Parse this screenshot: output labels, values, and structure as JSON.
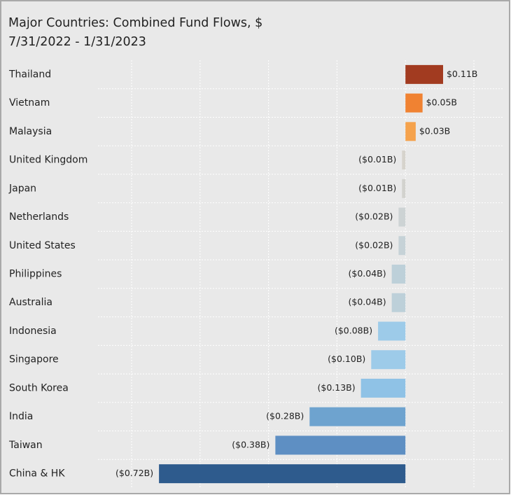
{
  "chart_data": {
    "type": "bar",
    "orientation": "horizontal",
    "title": "Major Countries:  Combined Fund Flows, $",
    "subtitle": "7/31/2022 - 1/31/2023",
    "categories": [
      "Thailand",
      "Vietnam",
      "Malaysia",
      "United Kingdom",
      "Japan",
      "Netherlands",
      "United States",
      "Philippines",
      "Australia",
      "Indonesia",
      "Singapore",
      "South Korea",
      "India",
      "Taiwan",
      "China & HK"
    ],
    "values": [
      0.11,
      0.05,
      0.03,
      -0.01,
      -0.01,
      -0.02,
      -0.02,
      -0.04,
      -0.04,
      -0.08,
      -0.1,
      -0.13,
      -0.28,
      -0.38,
      -0.72
    ],
    "value_labels": [
      "$0.11B",
      "$0.05B",
      "$0.03B",
      "($0.01B)",
      "($0.01B)",
      "($0.02B)",
      "($0.02B)",
      "($0.04B)",
      "($0.04B)",
      "($0.08B)",
      "($0.10B)",
      "($0.13B)",
      "($0.28B)",
      "($0.38B)",
      "($0.72B)"
    ],
    "colors": [
      "#a23b20",
      "#f08232",
      "#f5a24c",
      "#d6d3cc",
      "#d2d2ce",
      "#cdd3d4",
      "#c6d2d7",
      "#bdd0d9",
      "#bdd0d9",
      "#9dcbe9",
      "#9dcbe9",
      "#8fc2e6",
      "#6ea3cf",
      "#5e8fc3",
      "#2e5b8d"
    ],
    "xlim": [
      -0.8,
      0.2
    ],
    "xticks": [
      -0.8,
      -0.6,
      -0.4,
      -0.2,
      0,
      0.2
    ],
    "grid": true
  }
}
